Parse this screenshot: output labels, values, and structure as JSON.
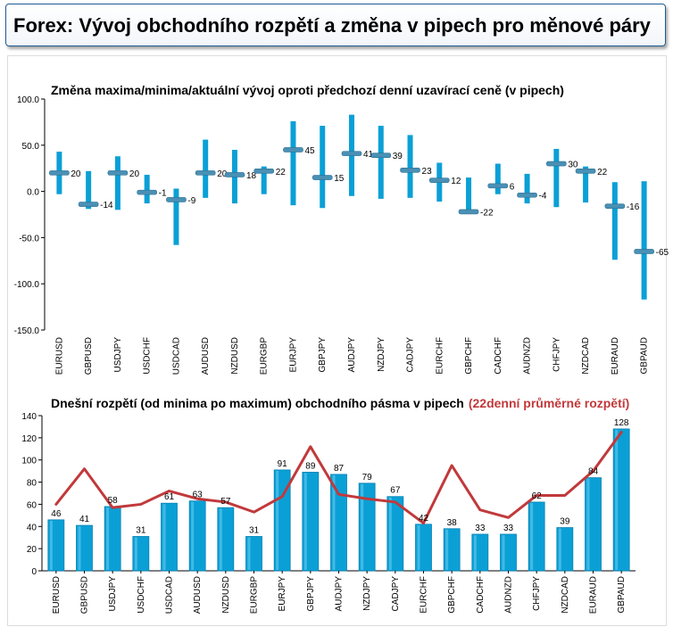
{
  "header": {
    "title": "Forex: Vývoj obchodního rozpětí a změna v pipech pro měnové páry"
  },
  "colors": {
    "bar": "#0aa0d6",
    "bar_dark": "#0782b4",
    "line": "#c1393b",
    "marker": "#4a90b5"
  },
  "chart_data": [
    {
      "type": "range",
      "title": "Změna maxima/minima/aktuální vývoj oproti předchozí denní uzavírací ceně (v pipech)",
      "ylim": [
        -150,
        100
      ],
      "yticks": [
        "100.0",
        "50.0",
        "0.0",
        "-50.0",
        "-100.0",
        "-150.0"
      ],
      "categories": [
        "EURUSD",
        "GBPUSD",
        "USDJPY",
        "USDCHF",
        "USDCAD",
        "AUDUSD",
        "NZDUSD",
        "EURGBP",
        "EURJPY",
        "GBPJPY",
        "AUDJPY",
        "NZDJPY",
        "CADJPY",
        "EURCHF",
        "GBPCHF",
        "CADCHF",
        "AUDNZD",
        "CHFJPY",
        "NZDCAD",
        "EURAUD",
        "GBPAUD"
      ],
      "high": [
        43,
        22,
        38,
        18,
        3,
        56,
        45,
        27,
        76,
        71,
        83,
        71,
        61,
        31,
        15,
        30,
        19,
        46,
        27,
        10,
        11
      ],
      "low": [
        -3,
        -19,
        -20,
        -13,
        -58,
        -7,
        -13,
        -3,
        -15,
        -18,
        -5,
        -8,
        -7,
        -11,
        -23,
        -3,
        -13,
        -17,
        -12,
        -74,
        -117
      ],
      "current": [
        20,
        -14,
        20,
        -1,
        -9,
        20,
        18,
        22,
        45,
        15,
        41,
        39,
        23,
        12,
        -22,
        6,
        -4,
        30,
        22,
        -16,
        -65
      ],
      "labels": [
        "20",
        "-14",
        "20",
        "-1",
        "-9",
        "20",
        "18",
        "22",
        "45",
        "15",
        "41",
        "39",
        "23",
        "12",
        "-22",
        "6",
        "-4",
        "30",
        "22",
        "-16",
        "-65"
      ],
      "grid": false,
      "legend": "none"
    },
    {
      "type": "bar",
      "title": "Dnešní rozpětí (od minima po maximum) obchodního pásma v pipech",
      "title_highlight": "(22denní průměrné rozpětí)",
      "ylim": [
        0,
        140
      ],
      "yticks": [
        "140",
        "120",
        "100",
        "80",
        "60",
        "40",
        "20",
        "0"
      ],
      "categories": [
        "EURUSD",
        "GBPUSD",
        "USDJPY",
        "USDCHF",
        "USDCAD",
        "AUDUSD",
        "NZDUSD",
        "EURGBP",
        "EURJPY",
        "GBPJPY",
        "AUDJPY",
        "NZDJPY",
        "CADJPY",
        "EURCHF",
        "GBPCHF",
        "CADCHF",
        "AUDNZD",
        "CHFJPY",
        "NZDCAD",
        "EURAUD",
        "GBPAUD"
      ],
      "values": [
        46,
        41,
        58,
        31,
        61,
        63,
        57,
        31,
        91,
        89,
        87,
        79,
        67,
        42,
        38,
        33,
        33,
        62,
        39,
        84,
        128
      ],
      "labels": [
        "46",
        "41",
        "58",
        "31",
        "61",
        "63",
        "57",
        "31",
        "91",
        "89",
        "87",
        "79",
        "67",
        "42",
        "38",
        "33",
        "33",
        "62",
        "39",
        "84",
        "128"
      ],
      "avg": [
        60,
        92,
        57,
        60,
        72,
        65,
        62,
        53,
        67,
        112,
        69,
        65,
        62,
        43,
        95,
        55,
        48,
        68,
        68,
        90,
        125
      ],
      "grid": false,
      "legend": "none"
    }
  ]
}
